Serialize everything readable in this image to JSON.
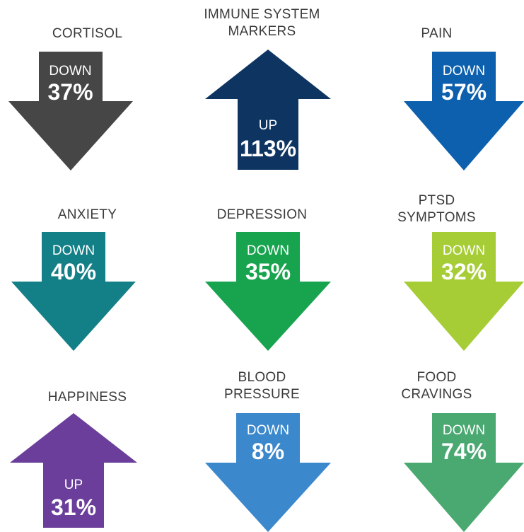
{
  "items": [
    {
      "label": "CORTISOL",
      "direction": "DOWN",
      "value": "37%",
      "color": "#464646"
    },
    {
      "label": "IMMUNE SYSTEM\nMARKERS",
      "direction": "UP",
      "value": "113%",
      "color": "#0e3561"
    },
    {
      "label": "PAIN",
      "direction": "DOWN",
      "value": "57%",
      "color": "#0d60ae"
    },
    {
      "label": "ANXIETY",
      "direction": "DOWN",
      "value": "40%",
      "color": "#137f86"
    },
    {
      "label": "DEPRESSION",
      "direction": "DOWN",
      "value": "35%",
      "color": "#18a44f"
    },
    {
      "label": "PTSD\nSYMPTOMS",
      "direction": "DOWN",
      "value": "32%",
      "color": "#a6cd35"
    },
    {
      "label": "HAPPINESS",
      "direction": "UP",
      "value": "31%",
      "color": "#6a3e9a"
    },
    {
      "label": "BLOOD\nPRESSURE",
      "direction": "DOWN",
      "value": "8%",
      "color": "#3c88cc"
    },
    {
      "label": "FOOD\nCRAVINGS",
      "direction": "DOWN",
      "value": "74%",
      "color": "#4aa871"
    }
  ]
}
